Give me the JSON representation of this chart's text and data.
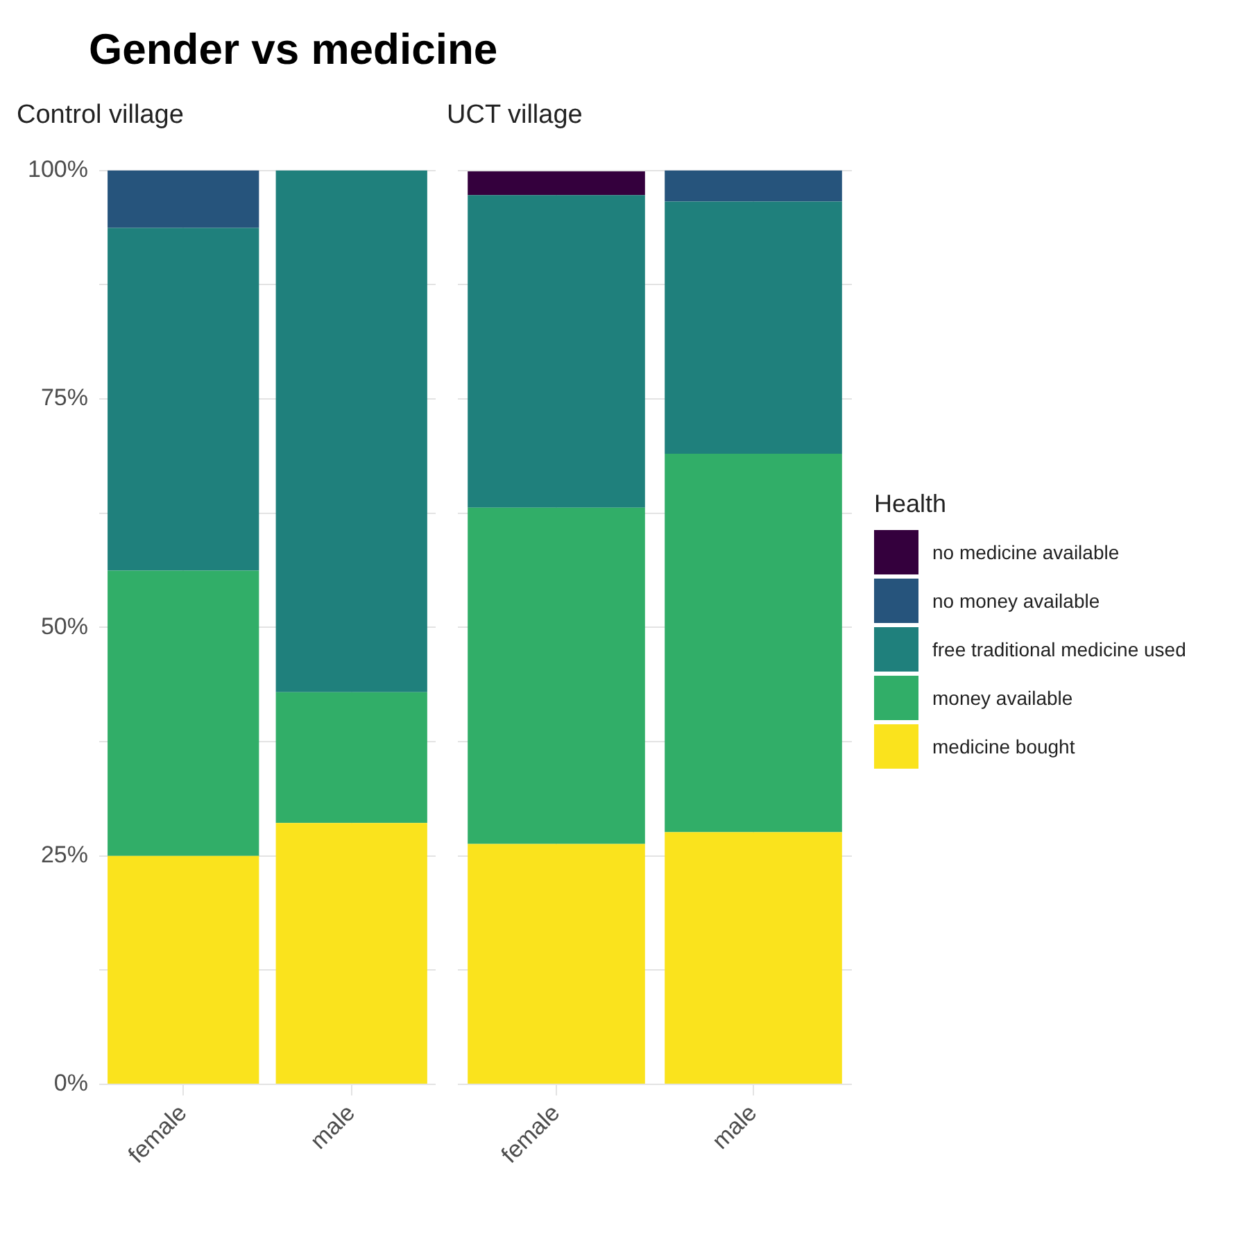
{
  "chart_data": [
    {
      "type": "bar",
      "title": "Gender vs medicine",
      "subtitle": "Control village",
      "categories": [
        "female",
        "male"
      ],
      "stacked": true,
      "grid": true,
      "ylim": [
        0,
        100
      ],
      "yticks": [
        {
          "value": 0,
          "label": "0%"
        },
        {
          "value": 12.5,
          "label": null
        },
        {
          "value": 25,
          "label": "25%"
        },
        {
          "value": 37.5,
          "label": null
        },
        {
          "value": 50,
          "label": "50%"
        },
        {
          "value": 62.5,
          "label": null
        },
        {
          "value": 75,
          "label": "75%"
        },
        {
          "value": 87.5,
          "label": null
        },
        {
          "value": 100,
          "label": "100%"
        }
      ],
      "series": [
        {
          "color": "#fae31d",
          "values": [
            25,
            28.6
          ]
        },
        {
          "color": "#31ae68",
          "values": [
            31.2,
            14.3
          ]
        },
        {
          "color": "#1f807c",
          "values": [
            37.5,
            57.1
          ]
        },
        {
          "color": "#26547c",
          "values": [
            6.3,
            null
          ]
        },
        {
          "color": "#34003d",
          "values": [
            null,
            null
          ]
        }
      ]
    },
    {
      "type": "bar",
      "subtitle": "UCT village",
      "categories": [
        "female",
        "male"
      ],
      "stacked": true,
      "grid": true,
      "tick_labels": "x",
      "legend": "right",
      "legend_title": "Health",
      "ylim": [
        0,
        100
      ],
      "yticks": [
        {
          "value": 0,
          "label": null
        },
        {
          "value": 12.5,
          "label": null
        },
        {
          "value": 25,
          "label": null
        },
        {
          "value": 37.5,
          "label": null
        },
        {
          "value": 50,
          "label": null
        },
        {
          "value": 62.5,
          "label": null
        },
        {
          "value": 75,
          "label": null
        },
        {
          "value": 87.5,
          "label": null
        },
        {
          "value": 100,
          "label": null
        }
      ],
      "series": [
        {
          "name": "medicine bought",
          "color": "#fae31d",
          "values": [
            26.3,
            27.6
          ]
        },
        {
          "name": "money available",
          "color": "#31ae68",
          "values": [
            36.8,
            41.4
          ]
        },
        {
          "name": "free traditional medicine used",
          "color": "#1f807c",
          "values": [
            34.2,
            27.6
          ]
        },
        {
          "name": "no money available",
          "color": "#26547c",
          "values": [
            null,
            3.4
          ]
        },
        {
          "name": "no medicine available",
          "color": "#34003d",
          "values": [
            2.6,
            null
          ]
        }
      ]
    }
  ]
}
